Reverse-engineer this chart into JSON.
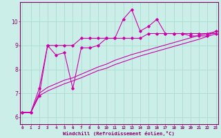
{
  "xlabel": "Windchill (Refroidissement éolien,°C)",
  "background_color": "#cceee8",
  "grid_color": "#aaddcc",
  "line_color": "#cc00aa",
  "x_ticks": [
    0,
    1,
    2,
    3,
    4,
    5,
    6,
    7,
    8,
    9,
    10,
    11,
    12,
    13,
    14,
    15,
    16,
    17,
    18,
    19,
    20,
    21,
    22,
    23
  ],
  "ylim": [
    5.7,
    10.8
  ],
  "xlim": [
    -0.3,
    23.3
  ],
  "series1_x": [
    0,
    1,
    2,
    3,
    4,
    5,
    6,
    7,
    8,
    9,
    10,
    11,
    12,
    13,
    14,
    15,
    16,
    17,
    18,
    19,
    20,
    21,
    22,
    23
  ],
  "series1_y": [
    6.2,
    6.2,
    6.9,
    9.0,
    8.6,
    8.7,
    7.2,
    8.9,
    8.9,
    9.0,
    9.3,
    9.3,
    10.1,
    10.5,
    9.6,
    9.8,
    10.1,
    9.5,
    9.5,
    9.5,
    9.4,
    9.4,
    9.4,
    9.6
  ],
  "series2_x": [
    0,
    1,
    2,
    3,
    4,
    5,
    6,
    7,
    8,
    9,
    10,
    11,
    12,
    13,
    14,
    15,
    16,
    17,
    18,
    19,
    20,
    21,
    22,
    23
  ],
  "series2_y": [
    6.2,
    6.2,
    7.2,
    9.0,
    9.0,
    9.0,
    9.0,
    9.3,
    9.3,
    9.3,
    9.3,
    9.3,
    9.3,
    9.3,
    9.3,
    9.5,
    9.5,
    9.5,
    9.5,
    9.5,
    9.5,
    9.5,
    9.5,
    9.5
  ],
  "series3_x": [
    0,
    1,
    2,
    3,
    4,
    5,
    6,
    7,
    8,
    9,
    10,
    11,
    12,
    13,
    14,
    15,
    16,
    17,
    18,
    19,
    20,
    21,
    22,
    23
  ],
  "series3_y": [
    6.2,
    6.2,
    7.0,
    7.25,
    7.4,
    7.55,
    7.65,
    7.8,
    7.95,
    8.1,
    8.22,
    8.38,
    8.5,
    8.62,
    8.72,
    8.82,
    8.92,
    9.02,
    9.12,
    9.22,
    9.32,
    9.42,
    9.5,
    9.58
  ],
  "series4_x": [
    0,
    1,
    2,
    3,
    4,
    5,
    6,
    7,
    8,
    9,
    10,
    11,
    12,
    13,
    14,
    15,
    16,
    17,
    18,
    19,
    20,
    21,
    22,
    23
  ],
  "series4_y": [
    6.2,
    6.2,
    6.9,
    7.1,
    7.25,
    7.4,
    7.52,
    7.65,
    7.8,
    7.95,
    8.05,
    8.2,
    8.32,
    8.44,
    8.56,
    8.66,
    8.76,
    8.86,
    8.96,
    9.06,
    9.16,
    9.26,
    9.38,
    9.48
  ]
}
